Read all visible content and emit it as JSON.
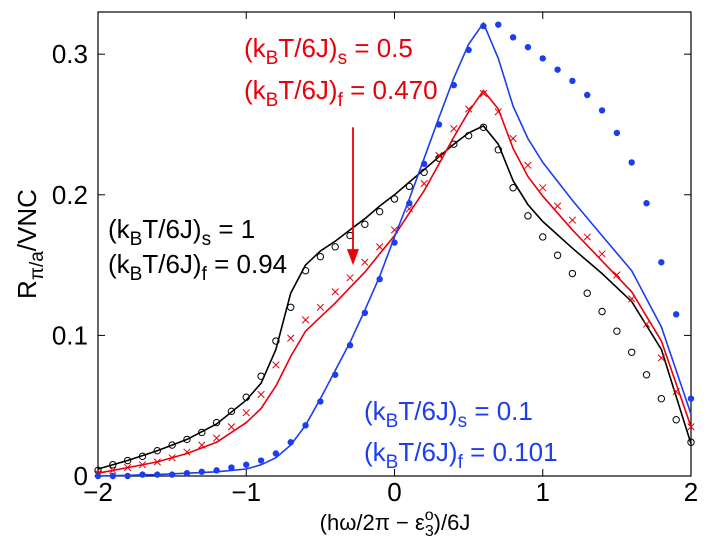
{
  "chart_data": {
    "type": "line",
    "title": "",
    "xlabel": "(hω/2π − ε3o)/6J",
    "ylabel": "Rπ/a/VNC",
    "xlim": [
      -2,
      2
    ],
    "ylim": [
      0,
      0.33
    ],
    "xticks": [
      -2,
      -1,
      0,
      1,
      2
    ],
    "yticks": [
      0,
      0.1,
      0.2,
      0.3
    ],
    "xtick_labels": [
      "−2",
      "−1",
      "0",
      "1",
      "2"
    ],
    "ytick_labels": [
      "0",
      "0.1",
      "0.2",
      "0.3"
    ],
    "xlabel_parts": {
      "pre": "(hω/2π − ε",
      "sub": "3",
      "sup": "o",
      "post": ")/6J"
    },
    "ylabel_parts": {
      "main": "R",
      "sub": "π/a",
      "post": "/VNC"
    },
    "series": [
      {
        "name": "kBT/6J = 1",
        "color": "#000000",
        "marker": "circle-open",
        "line_x": [
          -2.0,
          -1.8,
          -1.6,
          -1.4,
          -1.2,
          -1.0,
          -0.9,
          -0.8,
          -0.7,
          -0.6,
          -0.5,
          -0.4,
          -0.3,
          -0.2,
          -0.1,
          0.0,
          0.1,
          0.2,
          0.3,
          0.4,
          0.5,
          0.6,
          0.7,
          0.8,
          0.9,
          1.0,
          1.2,
          1.4,
          1.6,
          1.8,
          2.0
        ],
        "line_y": [
          0.005,
          0.011,
          0.018,
          0.026,
          0.037,
          0.054,
          0.066,
          0.09,
          0.13,
          0.15,
          0.16,
          0.167,
          0.175,
          0.183,
          0.192,
          0.2,
          0.209,
          0.218,
          0.227,
          0.236,
          0.244,
          0.249,
          0.236,
          0.21,
          0.193,
          0.181,
          0.162,
          0.144,
          0.124,
          0.09,
          0.023
        ],
        "marker_x": [
          -2.0,
          -1.9,
          -1.8,
          -1.7,
          -1.6,
          -1.5,
          -1.4,
          -1.3,
          -1.2,
          -1.1,
          -1.0,
          -0.9,
          -0.8,
          -0.7,
          -0.6,
          -0.5,
          -0.4,
          -0.3,
          -0.2,
          -0.1,
          0.0,
          0.1,
          0.2,
          0.3,
          0.4,
          0.5,
          0.6,
          0.7,
          0.8,
          0.9,
          1.0,
          1.1,
          1.2,
          1.3,
          1.4,
          1.5,
          1.6,
          1.7,
          1.8,
          1.9,
          2.0
        ],
        "marker_y": [
          0.004,
          0.008,
          0.011,
          0.014,
          0.018,
          0.022,
          0.026,
          0.031,
          0.038,
          0.046,
          0.056,
          0.071,
          0.096,
          0.12,
          0.146,
          0.156,
          0.163,
          0.171,
          0.179,
          0.188,
          0.197,
          0.206,
          0.216,
          0.226,
          0.236,
          0.242,
          0.248,
          0.232,
          0.205,
          0.185,
          0.17,
          0.157,
          0.144,
          0.13,
          0.117,
          0.103,
          0.088,
          0.072,
          0.055,
          0.04,
          0.024
        ]
      },
      {
        "name": "kBT/6J = 0.5",
        "color": "#e8000b",
        "marker": "x",
        "line_x": [
          -2.0,
          -1.8,
          -1.6,
          -1.4,
          -1.2,
          -1.0,
          -0.9,
          -0.8,
          -0.7,
          -0.6,
          -0.5,
          -0.4,
          -0.3,
          -0.2,
          -0.1,
          0.0,
          0.1,
          0.2,
          0.3,
          0.4,
          0.5,
          0.6,
          0.7,
          0.8,
          0.9,
          1.0,
          1.2,
          1.4,
          1.6,
          1.8,
          2.0
        ],
        "line_y": [
          0.002,
          0.006,
          0.01,
          0.016,
          0.024,
          0.038,
          0.048,
          0.064,
          0.085,
          0.103,
          0.113,
          0.123,
          0.134,
          0.145,
          0.158,
          0.171,
          0.187,
          0.203,
          0.222,
          0.241,
          0.259,
          0.274,
          0.261,
          0.233,
          0.213,
          0.199,
          0.175,
          0.153,
          0.131,
          0.096,
          0.035
        ],
        "marker_x": [
          -2.0,
          -1.9,
          -1.8,
          -1.7,
          -1.6,
          -1.5,
          -1.4,
          -1.3,
          -1.2,
          -1.1,
          -1.0,
          -0.9,
          -0.8,
          -0.7,
          -0.6,
          -0.5,
          -0.4,
          -0.3,
          -0.2,
          -0.1,
          0.0,
          0.1,
          0.2,
          0.3,
          0.4,
          0.5,
          0.6,
          0.7,
          0.8,
          0.9,
          1.0,
          1.1,
          1.2,
          1.3,
          1.4,
          1.5,
          1.6,
          1.7,
          1.8,
          1.9,
          2.0
        ],
        "marker_y": [
          0.002,
          0.004,
          0.006,
          0.008,
          0.01,
          0.013,
          0.017,
          0.022,
          0.027,
          0.035,
          0.045,
          0.058,
          0.079,
          0.098,
          0.111,
          0.12,
          0.131,
          0.141,
          0.152,
          0.163,
          0.175,
          0.19,
          0.208,
          0.228,
          0.247,
          0.261,
          0.272,
          0.259,
          0.24,
          0.221,
          0.205,
          0.192,
          0.182,
          0.17,
          0.158,
          0.143,
          0.126,
          0.108,
          0.084,
          0.06,
          0.035
        ]
      },
      {
        "name": "kBT/6J = 0.1",
        "color": "#1c3df0",
        "marker": "circle-filled",
        "line_x": [
          -2.0,
          -1.6,
          -1.4,
          -1.2,
          -1.0,
          -0.9,
          -0.8,
          -0.7,
          -0.6,
          -0.5,
          -0.4,
          -0.3,
          -0.2,
          -0.1,
          0.0,
          0.1,
          0.2,
          0.3,
          0.4,
          0.5,
          0.6,
          0.7,
          0.8,
          0.9,
          1.0,
          1.2,
          1.4,
          1.6,
          1.8,
          2.0
        ],
        "line_y": [
          0.0,
          0.001,
          0.002,
          0.003,
          0.005,
          0.008,
          0.013,
          0.022,
          0.036,
          0.055,
          0.075,
          0.095,
          0.118,
          0.142,
          0.17,
          0.197,
          0.226,
          0.255,
          0.283,
          0.307,
          0.322,
          0.297,
          0.263,
          0.24,
          0.223,
          0.196,
          0.171,
          0.146,
          0.106,
          0.044
        ],
        "marker_x": [
          -2.0,
          -1.9,
          -1.8,
          -1.7,
          -1.6,
          -1.5,
          -1.4,
          -1.3,
          -1.2,
          -1.1,
          -1.0,
          -0.9,
          -0.8,
          -0.7,
          -0.6,
          -0.5,
          -0.4,
          -0.3,
          -0.2,
          -0.1,
          0.0,
          0.1,
          0.2,
          0.3,
          0.4,
          0.5,
          0.6,
          0.7,
          0.8,
          0.9,
          1.0,
          1.1,
          1.2,
          1.3,
          1.4,
          1.5,
          1.6,
          1.7,
          1.8,
          1.9,
          2.0
        ],
        "marker_y": [
          0.0,
          0.0,
          0.0,
          0.001,
          0.001,
          0.001,
          0.002,
          0.003,
          0.004,
          0.006,
          0.008,
          0.011,
          0.016,
          0.024,
          0.036,
          0.053,
          0.072,
          0.093,
          0.116,
          0.14,
          0.166,
          0.194,
          0.222,
          0.25,
          0.278,
          0.303,
          0.32,
          0.321,
          0.312,
          0.305,
          0.297,
          0.289,
          0.281,
          0.271,
          0.26,
          0.244,
          0.223,
          0.194,
          0.152,
          0.115,
          0.055
        ]
      }
    ],
    "annotations": [
      {
        "series": 0,
        "lines": [
          {
            "pre": "(k",
            "sub": "B",
            "mid": "T/6J)",
            "sub2": "s",
            "post": " = 1"
          },
          {
            "pre": "(k",
            "sub": "B",
            "mid": "T/6J)",
            "sub2": "f",
            "post": " = 0.94"
          }
        ]
      },
      {
        "series": 1,
        "lines": [
          {
            "pre": "(k",
            "sub": "B",
            "mid": "T/6J)",
            "sub2": "s",
            "post": " = 0.5"
          },
          {
            "pre": "(k",
            "sub": "B",
            "mid": "T/6J)",
            "sub2": "f",
            "post": " = 0.470"
          }
        ]
      },
      {
        "series": 2,
        "lines": [
          {
            "pre": "(k",
            "sub": "B",
            "mid": "T/6J)",
            "sub2": "s",
            "post": " = 0.1"
          },
          {
            "pre": "(k",
            "sub": "B",
            "mid": "T/6J)",
            "sub2": "f",
            "post": " = 0.101"
          }
        ]
      }
    ],
    "arrow": {
      "color": "#e8000b",
      "from": [
        -0.28,
        0.248
      ],
      "to": [
        -0.28,
        0.15
      ]
    }
  }
}
